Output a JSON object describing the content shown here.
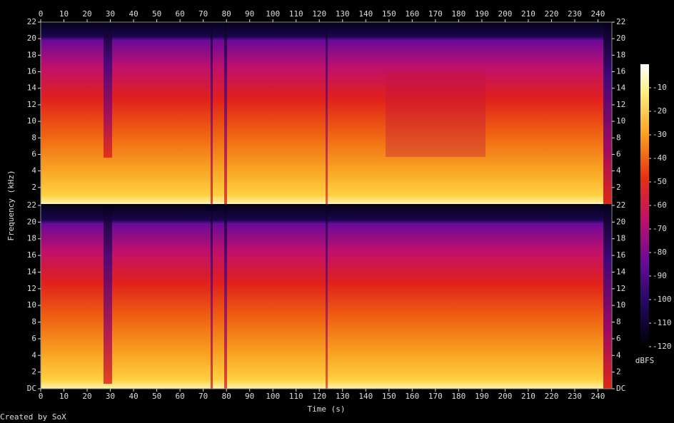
{
  "chart_data": [
    {
      "type": "spectrogram",
      "x_axis_position": "top",
      "xlim": [
        0,
        246
      ],
      "xticks": [
        0,
        10,
        20,
        30,
        40,
        50,
        60,
        70,
        80,
        90,
        100,
        110,
        120,
        130,
        140,
        150,
        160,
        170,
        180,
        190,
        200,
        210,
        220,
        230,
        240
      ],
      "ylim": [
        0,
        22
      ],
      "yticks": [
        2,
        4,
        6,
        8,
        10,
        12,
        14,
        16,
        18,
        20,
        22
      ]
    },
    {
      "type": "spectrogram",
      "x_axis_position": "bottom",
      "xlim": [
        0,
        246
      ],
      "xticks": [
        0,
        10,
        20,
        30,
        40,
        50,
        60,
        70,
        80,
        90,
        100,
        110,
        120,
        130,
        140,
        150,
        160,
        170,
        180,
        190,
        200,
        210,
        220,
        230,
        240
      ],
      "ylim": [
        0,
        22
      ],
      "yticks": [
        {
          "value": 0,
          "label": "DC"
        },
        2,
        4,
        6,
        8,
        10,
        12,
        14,
        16,
        18,
        20,
        22
      ]
    }
  ],
  "x_label": "Time (s)",
  "y_label": "Frequency (kHz)",
  "colorbar": {
    "label": "dBFS",
    "ylim": [
      -120,
      0
    ],
    "yticks": [
      -120,
      -110,
      -100,
      -90,
      -80,
      -70,
      -60,
      -50,
      -40,
      -30,
      -20,
      -10
    ]
  },
  "footer": "Created by SoX"
}
